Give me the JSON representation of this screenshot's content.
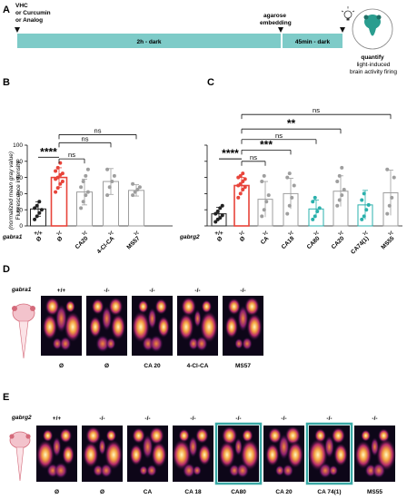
{
  "panelA": {
    "letter": "A",
    "treatment_line1": "VHC",
    "treatment_line2": "or Curcumin",
    "treatment_line3": "or Analog",
    "agarose_line1": "agarose",
    "agarose_line2": "embedding",
    "bar1_label": "2h - dark",
    "bar2_label": "45min - dark",
    "quantify": "quantify",
    "quantify_line2": "light-induced",
    "quantify_line3": "brain activity firing",
    "colors": {
      "timeline": "#7ecbc8",
      "fish": "#2a9d8f"
    }
  },
  "panelB": {
    "letter": "B",
    "gene": "gabra1",
    "ylabel": "Fluorescence intensity",
    "ylabel_sub": "(normalized mean gray value)",
    "sig_label": "****",
    "ns_label": "ns",
    "chart_data": {
      "type": "bar",
      "ylim": [
        0,
        100
      ],
      "yticks": [
        0,
        20,
        40,
        60,
        80,
        100
      ],
      "genotypes": [
        "+/+",
        "-/-",
        "-/-",
        "-/-",
        "-/-"
      ],
      "categories": [
        "Ø",
        "Ø",
        "CA20",
        "4-Cl-CA",
        "MS57"
      ],
      "values": [
        21,
        60,
        42,
        55,
        44
      ],
      "errors": [
        9,
        12,
        16,
        16,
        7
      ],
      "colors": [
        "#222222",
        "#e8443a",
        "#9e9e9e",
        "#9e9e9e",
        "#9e9e9e"
      ],
      "points": [
        [
          8,
          12,
          16,
          20,
          22,
          25,
          30
        ],
        [
          42,
          47,
          52,
          55,
          58,
          60,
          63,
          65,
          68,
          72,
          78
        ],
        [
          22,
          30,
          38,
          42,
          48,
          55,
          62,
          70
        ],
        [
          38,
          48,
          55,
          62,
          70
        ],
        [
          38,
          42,
          45,
          48,
          52
        ]
      ]
    }
  },
  "panelC": {
    "letter": "C",
    "gene": "gabrg2",
    "sig_main": "****",
    "chart_data": {
      "type": "bar",
      "ylim": [
        0,
        100
      ],
      "genotypes": [
        "+/+",
        "-/-",
        "-/-",
        "-/-",
        "-/-",
        "-/-",
        "-/-",
        "-/-"
      ],
      "categories": [
        "Ø",
        "Ø",
        "CA",
        "CA18",
        "CA80",
        "CA20",
        "CA74(1)",
        "MS55"
      ],
      "values": [
        15,
        50,
        33,
        40,
        21,
        43,
        26,
        41
      ],
      "errors": [
        8,
        10,
        22,
        19,
        11,
        19,
        18,
        28
      ],
      "colors": [
        "#222222",
        "#e8443a",
        "#9e9e9e",
        "#9e9e9e",
        "#2ab0ac",
        "#9e9e9e",
        "#2ab0ac",
        "#9e9e9e"
      ],
      "points": [
        [
          5,
          8,
          10,
          13,
          15,
          18,
          22,
          25
        ],
        [
          35,
          40,
          45,
          48,
          50,
          52,
          55,
          58,
          60,
          62,
          65
        ],
        [
          12,
          20,
          30,
          38,
          55,
          62
        ],
        [
          15,
          25,
          35,
          50,
          60,
          65
        ],
        [
          8,
          12,
          18,
          22,
          30,
          35
        ],
        [
          25,
          32,
          38,
          45,
          55,
          62,
          72
        ],
        [
          8,
          12,
          20,
          26,
          32,
          40
        ],
        [
          15,
          25,
          35,
          60,
          70
        ]
      ],
      "comparisons": [
        {
          "to": 2,
          "label": "ns"
        },
        {
          "to": 3,
          "label": "***"
        },
        {
          "to": 4,
          "label": "ns"
        },
        {
          "to": 5,
          "label": "**"
        },
        {
          "to": 7,
          "label": "ns"
        }
      ]
    }
  },
  "panelD": {
    "letter": "D",
    "gene": "gabra1",
    "genotypes": [
      "+/+",
      "-/-",
      "-/-",
      "-/-",
      "-/-"
    ],
    "labels": [
      "Ø",
      "Ø",
      "CA 20",
      "4-Cl-CA",
      "MS57"
    ],
    "highlight": [
      false,
      false,
      false,
      false,
      false
    ]
  },
  "panelE": {
    "letter": "E",
    "gene": "gabrg2",
    "genotypes": [
      "+/+",
      "-/-",
      "-/-",
      "-/-",
      "-/-",
      "-/-",
      "-/-",
      "-/-"
    ],
    "labels": [
      "Ø",
      "Ø",
      "CA",
      "CA 18",
      "CA80",
      "CA 20",
      "CA 74(1)",
      "MS55"
    ],
    "highlight": [
      false,
      false,
      false,
      false,
      true,
      false,
      true,
      false
    ],
    "highlight_color": "#3aa9a6"
  }
}
